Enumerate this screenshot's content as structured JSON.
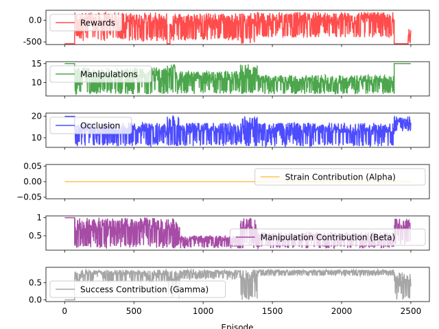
{
  "chart_data": {
    "type": "line",
    "xlabel": "Episode",
    "x_ticks": [
      0,
      500,
      1000,
      1500,
      2000,
      2500
    ],
    "xlim": [
      -135,
      2634
    ],
    "episodes": 2500,
    "subplots": [
      {
        "name": "Rewards",
        "color": "#ff0000",
        "ylim": [
          -560,
          230
        ],
        "yticks": [
          -500,
          0
        ],
        "legend": "upper left",
        "segments": [
          {
            "x": [
              0,
              72
            ],
            "low": -540,
            "high": -540
          },
          {
            "x": [
              72,
              740
            ],
            "low": -480,
            "high": 180
          },
          {
            "x": [
              740,
              760
            ],
            "low": -540,
            "high": -540
          },
          {
            "x": [
              760,
              1270
            ],
            "low": -470,
            "high": 170
          },
          {
            "x": [
              1270,
              1380
            ],
            "low": -540,
            "high": 180
          },
          {
            "x": [
              1380,
              2380
            ],
            "low": -400,
            "high": 190
          },
          {
            "x": [
              2380,
              2480
            ],
            "low": -540,
            "high": -540
          },
          {
            "x": [
              2480,
              2500
            ],
            "low": -540,
            "high": -200
          }
        ]
      },
      {
        "name": "Manipulations",
        "color": "#008000",
        "ylim": [
          6.5,
          15.5
        ],
        "yticks": [
          10,
          15
        ],
        "legend": "upper left",
        "segments": [
          {
            "x": [
              0,
              72
            ],
            "low": 15,
            "high": 15
          },
          {
            "x": [
              72,
              740
            ],
            "low": 7,
            "high": 14
          },
          {
            "x": [
              740,
              800
            ],
            "low": 7,
            "high": 15
          },
          {
            "x": [
              800,
              1270
            ],
            "low": 7,
            "high": 13
          },
          {
            "x": [
              1270,
              1390
            ],
            "low": 7,
            "high": 15
          },
          {
            "x": [
              1390,
              2380
            ],
            "low": 7,
            "high": 12
          },
          {
            "x": [
              2380,
              2500
            ],
            "low": 15,
            "high": 15
          }
        ]
      },
      {
        "name": "Occlusion",
        "color": "#0000ff",
        "ylim": [
          5.5,
          21.5
        ],
        "yticks": [
          10,
          20
        ],
        "legend": "upper left",
        "segments": [
          {
            "x": [
              0,
              72
            ],
            "low": 20,
            "high": 20
          },
          {
            "x": [
              72,
              740
            ],
            "low": 6,
            "high": 17
          },
          {
            "x": [
              740,
              830
            ],
            "low": 6,
            "high": 20
          },
          {
            "x": [
              830,
              1270
            ],
            "low": 6,
            "high": 17
          },
          {
            "x": [
              1270,
              1390
            ],
            "low": 6,
            "high": 20
          },
          {
            "x": [
              1390,
              2380
            ],
            "low": 6,
            "high": 17
          },
          {
            "x": [
              2380,
              2500
            ],
            "low": 13,
            "high": 20
          }
        ]
      },
      {
        "name": "Strain Contribution (Alpha)",
        "color": "#ffa500",
        "ylim": [
          -0.055,
          0.055
        ],
        "yticks": [
          -0.05,
          0.0,
          0.05
        ],
        "ytick_labels": [
          "−0.05",
          "0.00",
          "0.05"
        ],
        "legend": "upper right",
        "segments": [
          {
            "x": [
              0,
              2500
            ],
            "low": 0,
            "high": 0
          }
        ]
      },
      {
        "name": "Manipulation Contribution (Beta)",
        "color": "#800080",
        "ylim": [
          0.1,
          1.05
        ],
        "yticks": [
          0.5,
          1.0
        ],
        "legend": "center right",
        "segments": [
          {
            "x": [
              0,
              72
            ],
            "low": 1.0,
            "high": 1.0
          },
          {
            "x": [
              72,
              740
            ],
            "low": 0.15,
            "high": 1.0
          },
          {
            "x": [
              740,
              830
            ],
            "low": 0.15,
            "high": 1.0
          },
          {
            "x": [
              830,
              1270
            ],
            "low": 0.15,
            "high": 0.5
          },
          {
            "x": [
              1270,
              1390
            ],
            "low": 0.15,
            "high": 1.0
          },
          {
            "x": [
              1390,
              2380
            ],
            "low": 0.15,
            "high": 0.6
          },
          {
            "x": [
              2380,
              2500
            ],
            "low": 0.25,
            "high": 1.0
          }
        ]
      },
      {
        "name": "Success Contribution (Gamma)",
        "color": "#808080",
        "ylim": [
          -0.05,
          0.95
        ],
        "yticks": [
          0.0,
          0.5
        ],
        "legend": "lower left",
        "segments": [
          {
            "x": [
              0,
              72
            ],
            "low": 0.0,
            "high": 0.0
          },
          {
            "x": [
              72,
              740
            ],
            "low": 0.5,
            "high": 0.88
          },
          {
            "x": [
              740,
              830
            ],
            "low": 0.0,
            "high": 0.88
          },
          {
            "x": [
              830,
              1270
            ],
            "low": 0.6,
            "high": 0.88
          },
          {
            "x": [
              1270,
              1390
            ],
            "low": 0.0,
            "high": 0.88
          },
          {
            "x": [
              1390,
              2380
            ],
            "low": 0.7,
            "high": 0.88
          },
          {
            "x": [
              2380,
              2500
            ],
            "low": 0.0,
            "high": 0.8
          }
        ]
      }
    ]
  }
}
